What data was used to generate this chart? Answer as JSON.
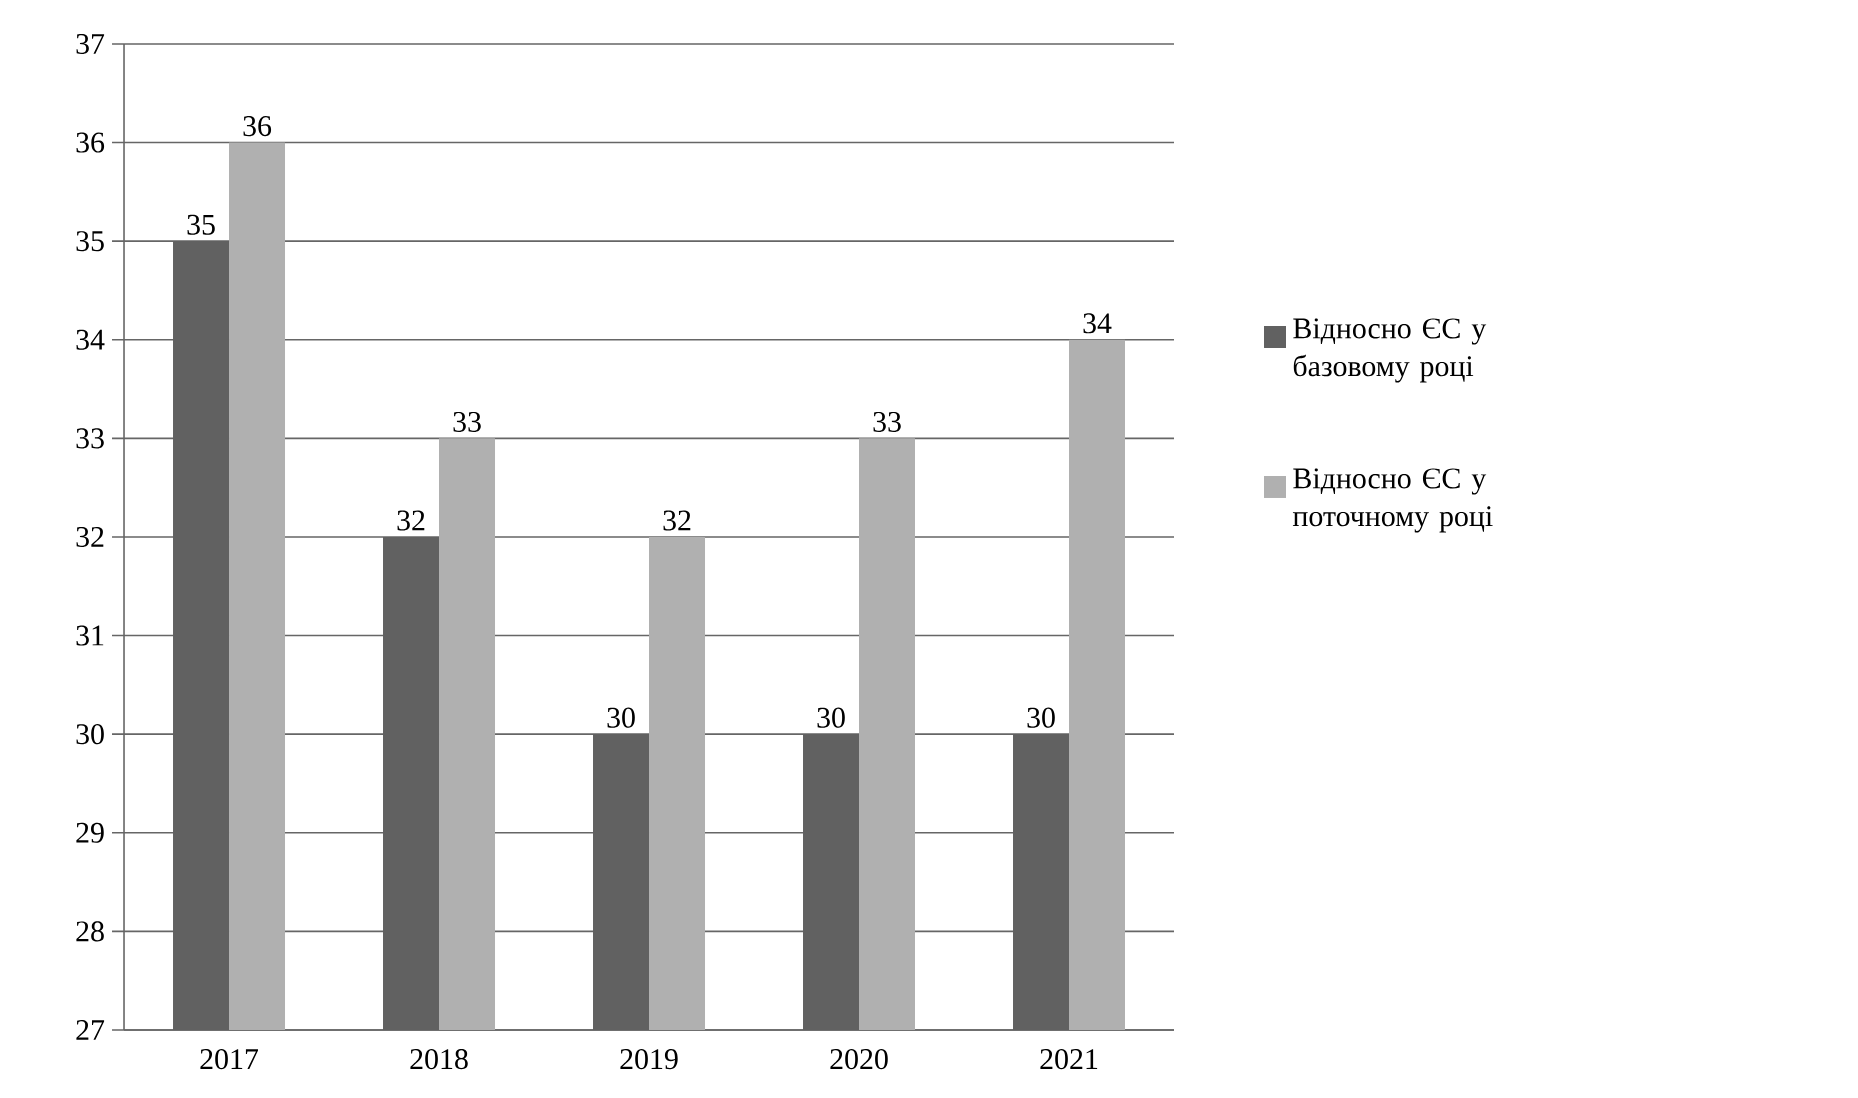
{
  "chart_data": {
    "type": "bar",
    "categories": [
      "2017",
      "2018",
      "2019",
      "2020",
      "2021"
    ],
    "series": [
      {
        "name": "Відносно ЄС у базовому році",
        "color": "#616161",
        "values": [
          35,
          32,
          30,
          30,
          30
        ]
      },
      {
        "name": "Відносно ЄС у поточному році",
        "color": "#b0b0b0",
        "values": [
          36,
          33,
          32,
          33,
          34
        ]
      }
    ],
    "ylim": [
      27,
      37
    ],
    "yticks": [
      27,
      28,
      29,
      30,
      31,
      32,
      33,
      34,
      35,
      36,
      37
    ],
    "grid": "y",
    "legend": "right",
    "data_labels": true
  }
}
